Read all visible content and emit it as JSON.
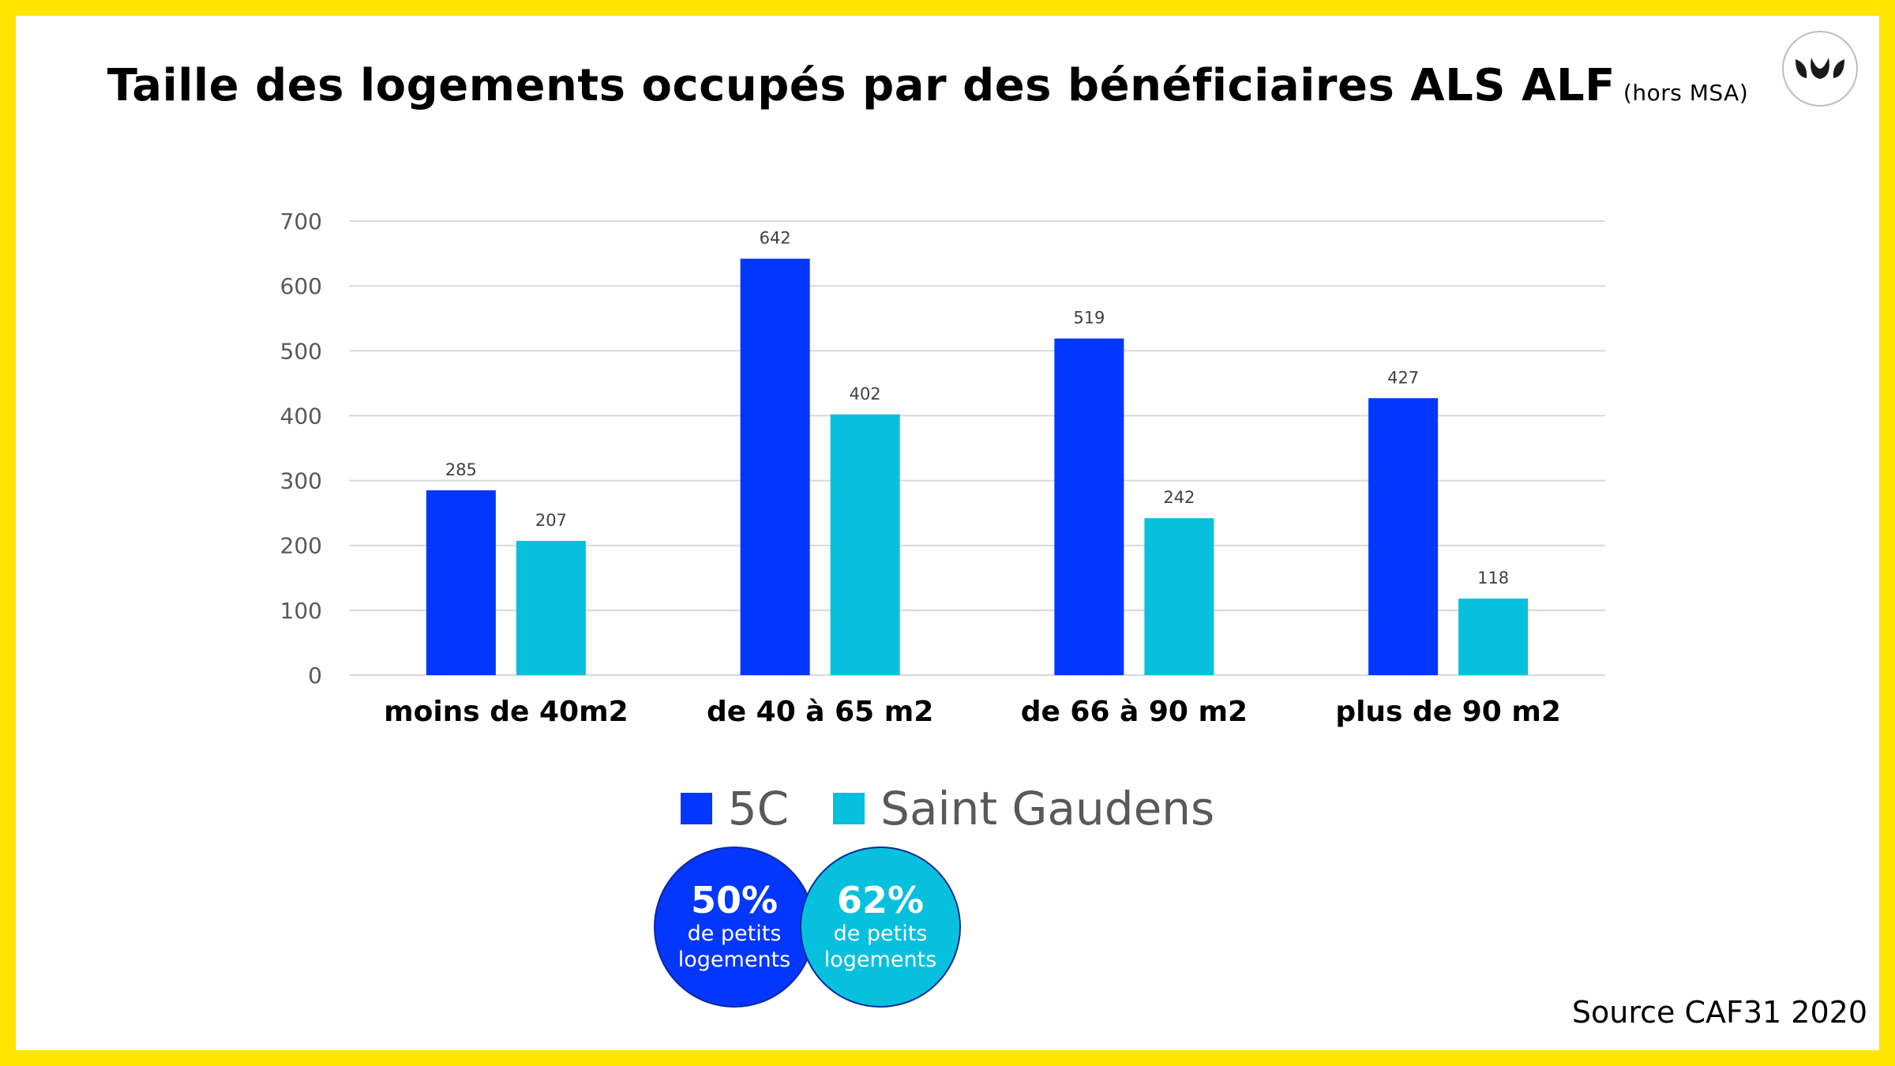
{
  "title": "Taille des logements occupés par des bénéficiaires ALS ALF",
  "title_suffix": "(hors MSA)",
  "logo_icon": "leaf-logo-icon",
  "source": "Source CAF31 2020",
  "colors": {
    "series_5c": "#0336FF",
    "series_sg": "#06C0DE",
    "frame": "#FFE500"
  },
  "chart_data": {
    "type": "bar",
    "categories": [
      "moins de 40m2",
      "de 40 à 65 m2",
      "de 66 à 90 m2",
      "plus de 90 m2"
    ],
    "series": [
      {
        "name": "5C",
        "values": [
          285,
          642,
          519,
          427
        ]
      },
      {
        "name": "Saint Gaudens",
        "values": [
          207,
          402,
          242,
          118
        ]
      }
    ],
    "ylim": [
      0,
      700
    ],
    "yticks": [
      0,
      100,
      200,
      300,
      400,
      500,
      600,
      700
    ],
    "grid": true,
    "legend": "bottom"
  },
  "highlights": [
    {
      "value": "50%",
      "text": "de petits logements"
    },
    {
      "value": "62%",
      "text": "de petits logements"
    }
  ]
}
